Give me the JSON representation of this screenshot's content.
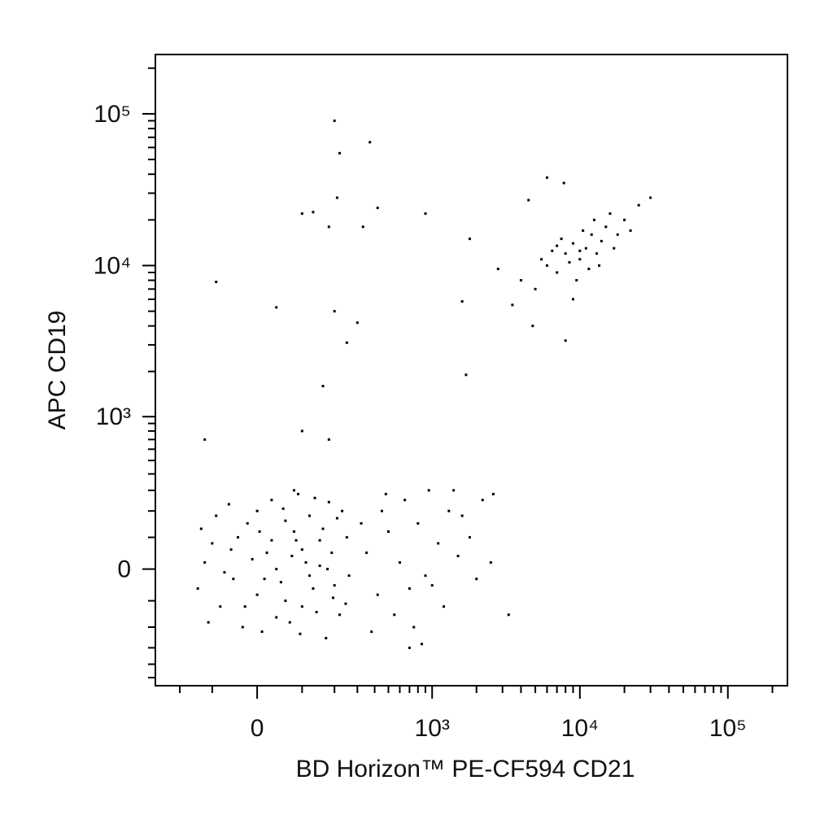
{
  "chart_data": {
    "type": "scatter",
    "x_label": "BD Horizon™ PE-CF594 CD21",
    "y_label": "APC CD19",
    "x_scale": "arcsinh",
    "x_cofactor": 132,
    "y_scale": "arcsinh",
    "y_cofactor": 200,
    "color": "#000000",
    "xlim": [
      -308,
      252700
    ],
    "ylim": [
      -570,
      246000
    ],
    "xticks": [
      0,
      {
        "value": 1000,
        "label": "10³"
      },
      {
        "value": 10000,
        "label": "10⁴"
      },
      {
        "value": 100000,
        "label": "10⁵"
      }
    ],
    "yticks": [
      0,
      {
        "value": 1000,
        "label": "10³"
      },
      {
        "value": 10000,
        "label": "10⁴"
      },
      {
        "value": 100000,
        "label": "10⁵"
      }
    ],
    "x_minor_ticks": [
      -200,
      -100,
      100,
      200,
      300,
      400,
      500,
      600,
      700,
      800,
      900,
      2000,
      3000,
      4000,
      5000,
      6000,
      7000,
      8000,
      9000,
      20000,
      30000,
      40000,
      50000,
      60000,
      70000,
      80000,
      90000,
      200000
    ],
    "y_minor_ticks": [
      -500,
      -400,
      -300,
      -200,
      -100,
      100,
      200,
      300,
      400,
      500,
      600,
      700,
      800,
      900,
      2000,
      3000,
      4000,
      5000,
      6000,
      7000,
      8000,
      9000,
      20000,
      30000,
      40000,
      50000,
      60000,
      70000,
      80000,
      90000,
      200000
    ],
    "x": [
      20,
      80,
      -50,
      150,
      0,
      60,
      120,
      -100,
      200,
      40,
      100,
      -20,
      180,
      70,
      -80,
      250,
      10,
      130,
      -120,
      90,
      30,
      160,
      -60,
      220,
      50,
      110,
      -30,
      190,
      0,
      140,
      -90,
      80,
      260,
      -140,
      30,
      170,
      60,
      -10,
      210,
      120,
      -40,
      100,
      40,
      150,
      -70,
      230,
      5,
      75,
      -110,
      195,
      55,
      135,
      -25,
      95,
      175,
      15,
      -55,
      245,
      85,
      -130,
      350,
      420,
      500,
      600,
      700,
      800,
      900,
      1100,
      1300,
      1500,
      1800,
      2200,
      2600,
      3300,
      450,
      550,
      650,
      750,
      1000,
      1200,
      1400,
      2000,
      380,
      480,
      850,
      950,
      1600,
      2500,
      320,
      700,
      200,
      220,
      370,
      100,
      130,
      180,
      210,
      330,
      420,
      900,
      -90,
      40,
      200,
      300,
      250,
      160,
      1700,
      1600,
      1800,
      100,
      -120,
      180,
      8000,
      9000,
      10000,
      12000,
      7000,
      11000,
      6000,
      15000,
      9500,
      13000,
      7500,
      5000,
      20000,
      8500,
      10500,
      6500,
      14000,
      16000,
      4000,
      3500,
      5500,
      9000,
      11500,
      18000,
      25000,
      30000,
      12500,
      7000,
      6000,
      7800,
      4500,
      8000,
      4800,
      2800,
      10000,
      17000,
      22000,
      13500
    ],
    "values": [
      50,
      120,
      -30,
      10,
      200,
      -100,
      180,
      80,
      -50,
      0,
      60,
      150,
      240,
      -180,
      -120,
      100,
      -220,
      -60,
      20,
      280,
      90,
      130,
      230,
      -150,
      -40,
      20,
      -200,
      50,
      -80,
      -140,
      180,
      300,
      -20,
      -60,
      250,
      -250,
      160,
      30,
      170,
      -20,
      100,
      -120,
      -160,
      90,
      -10,
      200,
      120,
      40,
      -180,
      -90,
      210,
      260,
      -120,
      -230,
      0,
      -30,
      60,
      -110,
      90,
      130,
      50,
      -80,
      120,
      20,
      -60,
      150,
      -20,
      80,
      200,
      40,
      100,
      250,
      280,
      -150,
      200,
      -150,
      250,
      -200,
      -50,
      -120,
      300,
      -30,
      -220,
      280,
      -280,
      300,
      180,
      20,
      150,
      -300,
      90000,
      55000,
      65000,
      22000,
      22500,
      18000,
      28000,
      18000,
      24000,
      22000,
      7800,
      5300,
      5000,
      4200,
      3100,
      1600,
      1900,
      5800,
      15000,
      800,
      700,
      700,
      12000,
      14000,
      11000,
      16000,
      9000,
      13000,
      10000,
      18000,
      8000,
      12000,
      15000,
      7000,
      20000,
      10500,
      17000,
      12500,
      14500,
      22000,
      8000,
      5500,
      11000,
      6000,
      9500,
      16000,
      25000,
      28000,
      20000,
      13500,
      38000,
      35000,
      27000,
      3200,
      4000,
      9500,
      12500,
      13000,
      17000,
      10000
    ]
  }
}
